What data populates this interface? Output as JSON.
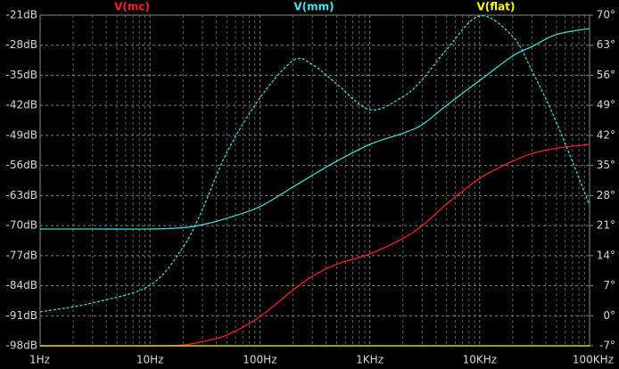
{
  "chart_data": {
    "type": "line",
    "x": [
      1,
      3,
      10,
      20,
      30,
      50,
      100,
      200,
      300,
      500,
      1000,
      2000,
      3000,
      5000,
      10000,
      20000,
      30000,
      50000,
      100000
    ],
    "series": [
      {
        "name": "V(mc)",
        "color": "#ff2020",
        "values": [
          -98,
          -98,
          -98,
          -97.8,
          -97,
          -95.5,
          -91.2,
          -85,
          -81.8,
          -79,
          -76.6,
          -73,
          -70,
          -65,
          -59,
          -55,
          -53.2,
          -52,
          -51.1
        ]
      },
      {
        "name": "V(mm)",
        "color": "#40e8e8",
        "values": [
          -70.8,
          -70.8,
          -70.8,
          -70.5,
          -69.8,
          -68.3,
          -65.6,
          -61,
          -58.3,
          -55,
          -51.1,
          -48.5,
          -46.5,
          -42,
          -36.2,
          -30.5,
          -28.3,
          -25.5,
          -24.1
        ]
      },
      {
        "name": "V(mm)",
        "color": "#40e8e8",
        "axis": "y2",
        "dashed": true,
        "values": [
          0.9,
          3,
          7.1,
          16,
          24.8,
          38,
          50.7,
          59.4,
          58.5,
          54,
          48,
          51,
          55,
          62,
          69.8,
          65,
          57,
          45,
          25.8
        ]
      },
      {
        "name": "V(flat)",
        "color": "#ffff00",
        "values": [
          -98,
          -98,
          -98,
          -98,
          -98,
          -98,
          -98,
          -98,
          -98,
          -98,
          -98,
          -98,
          -98,
          -98,
          -98,
          -98,
          -98,
          -98,
          -98
        ]
      }
    ],
    "xlog": true,
    "xlim": [
      1,
      100000
    ],
    "xticks": [
      {
        "value": 1,
        "label": "1Hz"
      },
      {
        "value": 10,
        "label": "10Hz"
      },
      {
        "value": 100,
        "label": "100Hz"
      },
      {
        "value": 1000,
        "label": "1KHz"
      },
      {
        "value": 10000,
        "label": "10KHz"
      },
      {
        "value": 100000,
        "label": "100KHz"
      }
    ],
    "x_minor_ticks": [
      2,
      3,
      4,
      5,
      6,
      7,
      8,
      9,
      20,
      30,
      40,
      50,
      60,
      70,
      80,
      90,
      200,
      300,
      400,
      500,
      600,
      700,
      800,
      900,
      2000,
      3000,
      4000,
      5000,
      6000,
      7000,
      8000,
      9000,
      20000,
      30000,
      40000,
      50000,
      60000,
      70000,
      80000,
      90000
    ],
    "ylim": [
      -98,
      -21
    ],
    "yticks": [
      {
        "value": -98,
        "label": "-98dB"
      },
      {
        "value": -91,
        "label": "-91dB"
      },
      {
        "value": -84,
        "label": "-84dB"
      },
      {
        "value": -77,
        "label": "-77dB"
      },
      {
        "value": -70,
        "label": "-70dB"
      },
      {
        "value": -63,
        "label": "-63dB"
      },
      {
        "value": -56,
        "label": "-56dB"
      },
      {
        "value": -49,
        "label": "-49dB"
      },
      {
        "value": -42,
        "label": "-42dB"
      },
      {
        "value": -35,
        "label": "-35dB"
      },
      {
        "value": -28,
        "label": "-28dB"
      },
      {
        "value": -21,
        "label": "-21dB"
      }
    ],
    "y2lim": [
      -7,
      70
    ],
    "y2ticks": [
      {
        "value": -7,
        "label": "-7°"
      },
      {
        "value": 0,
        "label": "0°"
      },
      {
        "value": 7,
        "label": "7°"
      },
      {
        "value": 14,
        "label": "14°"
      },
      {
        "value": 21,
        "label": "21°"
      },
      {
        "value": 28,
        "label": "28°"
      },
      {
        "value": 35,
        "label": "35°"
      },
      {
        "value": 42,
        "label": "42°"
      },
      {
        "value": 49,
        "label": "49°"
      },
      {
        "value": 56,
        "label": "56°"
      },
      {
        "value": 63,
        "label": "63°"
      },
      {
        "value": 70,
        "label": "70°"
      }
    ],
    "grid": true
  }
}
